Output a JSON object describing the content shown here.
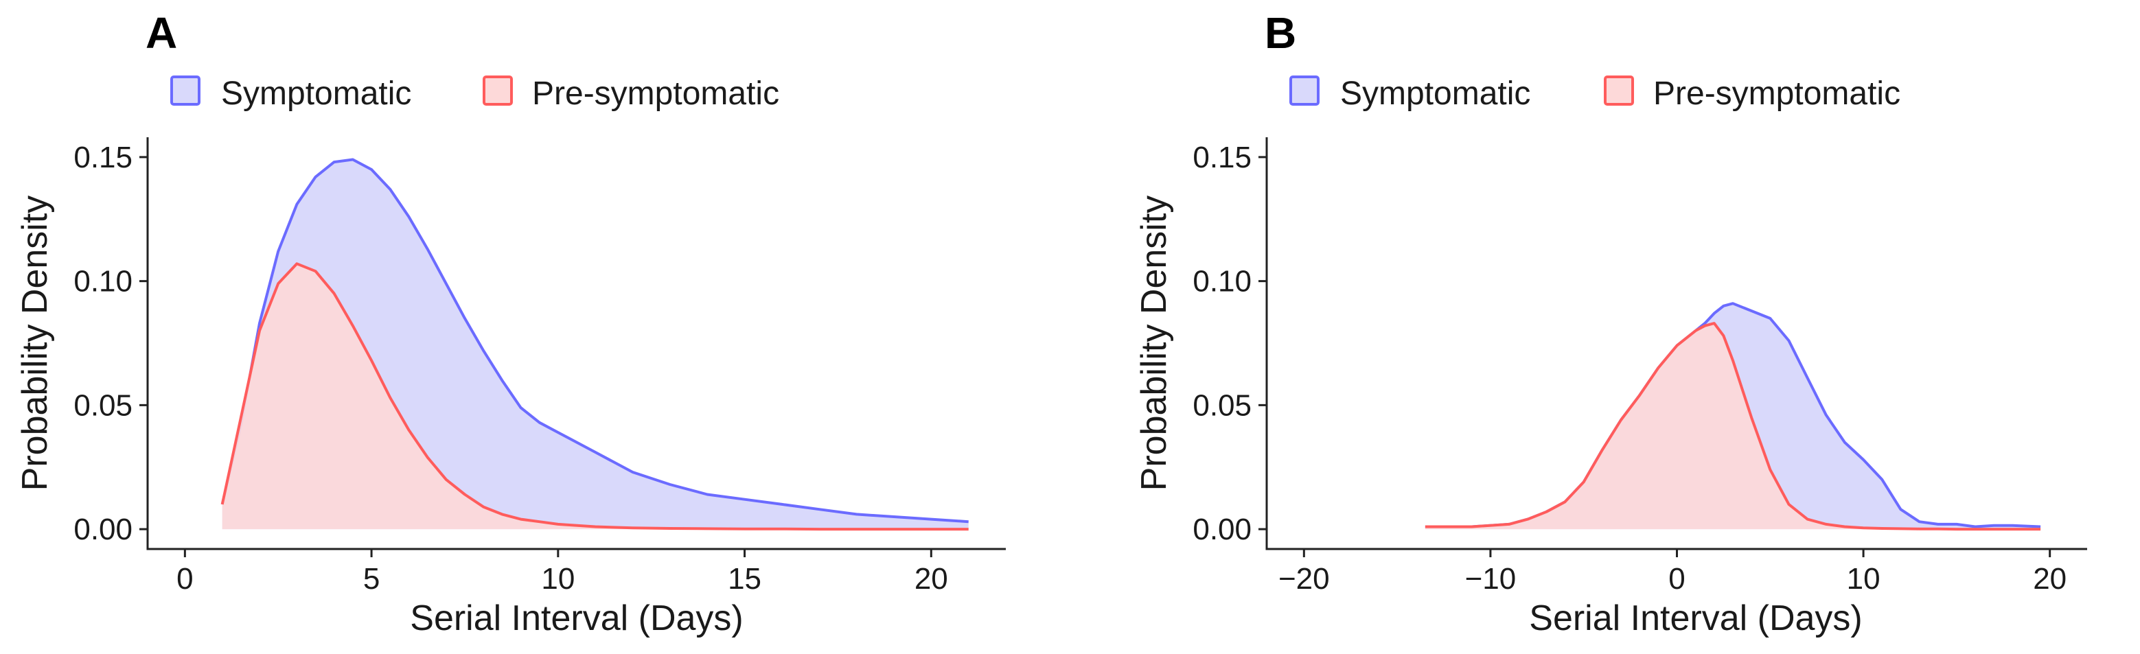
{
  "chart_data": [
    {
      "panel": "A",
      "type": "area",
      "xlabel": "Serial Interval (Days)",
      "ylabel": "Probability Density",
      "xlim": [
        -1,
        22
      ],
      "ylim": [
        -0.008,
        0.158
      ],
      "xticks": [
        0,
        5,
        10,
        15,
        20
      ],
      "xtick_labels": [
        "0",
        "5",
        "10",
        "15",
        "20"
      ],
      "yticks": [
        0.0,
        0.05,
        0.1,
        0.15
      ],
      "ytick_labels": [
        "0.00",
        "0.05",
        "0.10",
        "0.15"
      ],
      "grid": false,
      "legend_position": "top",
      "series": [
        {
          "name": "Symptomatic",
          "line_color": "#6b6bff",
          "fill_color": "#d9d9fb",
          "x": [
            1,
            1.5,
            2,
            2.5,
            3,
            3.5,
            4,
            4.5,
            5,
            5.5,
            6,
            6.5,
            7,
            7.5,
            8,
            8.5,
            9,
            9.5,
            10,
            11,
            12,
            13,
            14,
            15,
            16,
            17,
            18,
            19,
            20,
            21
          ],
          "y": [
            0.01,
            0.042,
            0.083,
            0.112,
            0.131,
            0.142,
            0.148,
            0.149,
            0.145,
            0.137,
            0.126,
            0.113,
            0.099,
            0.085,
            0.072,
            0.06,
            0.049,
            0.043,
            0.039,
            0.031,
            0.023,
            0.018,
            0.014,
            0.012,
            0.01,
            0.008,
            0.006,
            0.005,
            0.004,
            0.003
          ]
        },
        {
          "name": "Pre-symptomatic",
          "line_color": "#ff5c5c",
          "fill_color": "#fdd9d9",
          "x": [
            1,
            1.5,
            2,
            2.5,
            3,
            3.5,
            4,
            4.5,
            5,
            5.5,
            6,
            6.5,
            7,
            7.5,
            8,
            8.5,
            9,
            9.5,
            10,
            11,
            12,
            13,
            14,
            15,
            16,
            17,
            18,
            19,
            20,
            21
          ],
          "y": [
            0.01,
            0.045,
            0.08,
            0.099,
            0.107,
            0.104,
            0.095,
            0.082,
            0.068,
            0.053,
            0.04,
            0.029,
            0.02,
            0.014,
            0.009,
            0.006,
            0.004,
            0.003,
            0.002,
            0.001,
            0.0005,
            0.0003,
            0.0002,
            0.0001,
            0.0001,
            0.0,
            0.0,
            0.0,
            0.0,
            0.0
          ]
        }
      ]
    },
    {
      "panel": "B",
      "type": "area",
      "xlabel": "Serial Interval (Days)",
      "ylabel": "Probability Density",
      "xlim": [
        -22,
        22
      ],
      "ylim": [
        -0.008,
        0.158
      ],
      "xticks": [
        -20,
        -10,
        0,
        10,
        20
      ],
      "xtick_labels": [
        "−20",
        "−10",
        "0",
        "10",
        "20"
      ],
      "yticks": [
        0.0,
        0.05,
        0.1,
        0.15
      ],
      "ytick_labels": [
        "0.00",
        "0.05",
        "0.10",
        "0.15"
      ],
      "grid": false,
      "legend_position": "top",
      "series": [
        {
          "name": "Symptomatic",
          "line_color": "#6b6bff",
          "fill_color": "#d9d9fb",
          "x": [
            -13.5,
            -11,
            -9,
            -8,
            -7,
            -6,
            -5,
            -4,
            -3,
            -2,
            -1,
            0,
            1,
            1.5,
            2,
            2.5,
            3,
            4,
            5,
            6,
            7,
            8,
            9,
            10,
            11,
            12,
            13,
            14,
            15,
            16,
            17,
            18,
            19.5
          ],
          "y": [
            0.001,
            0.001,
            0.002,
            0.004,
            0.007,
            0.011,
            0.019,
            0.032,
            0.044,
            0.054,
            0.065,
            0.074,
            0.08,
            0.083,
            0.087,
            0.09,
            0.091,
            0.088,
            0.085,
            0.076,
            0.061,
            0.046,
            0.035,
            0.028,
            0.02,
            0.008,
            0.003,
            0.002,
            0.002,
            0.001,
            0.0015,
            0.0015,
            0.001
          ]
        },
        {
          "name": "Pre-symptomatic",
          "line_color": "#ff5c5c",
          "fill_color": "#fdd9d9",
          "x": [
            -13.5,
            -11,
            -9,
            -8,
            -7,
            -6,
            -5,
            -4,
            -3,
            -2,
            -1,
            0,
            1,
            1.5,
            2,
            2.5,
            3,
            4,
            5,
            6,
            7,
            8,
            9,
            10,
            11,
            12,
            13,
            14,
            15,
            16,
            17,
            18,
            19.5
          ],
          "y": [
            0.001,
            0.001,
            0.002,
            0.004,
            0.007,
            0.011,
            0.019,
            0.032,
            0.044,
            0.054,
            0.065,
            0.074,
            0.08,
            0.082,
            0.083,
            0.078,
            0.068,
            0.045,
            0.024,
            0.01,
            0.004,
            0.002,
            0.001,
            0.0005,
            0.0003,
            0.0002,
            0.0001,
            0.0001,
            0.0,
            0.0,
            0.0,
            0.0,
            0.0
          ]
        }
      ]
    }
  ]
}
